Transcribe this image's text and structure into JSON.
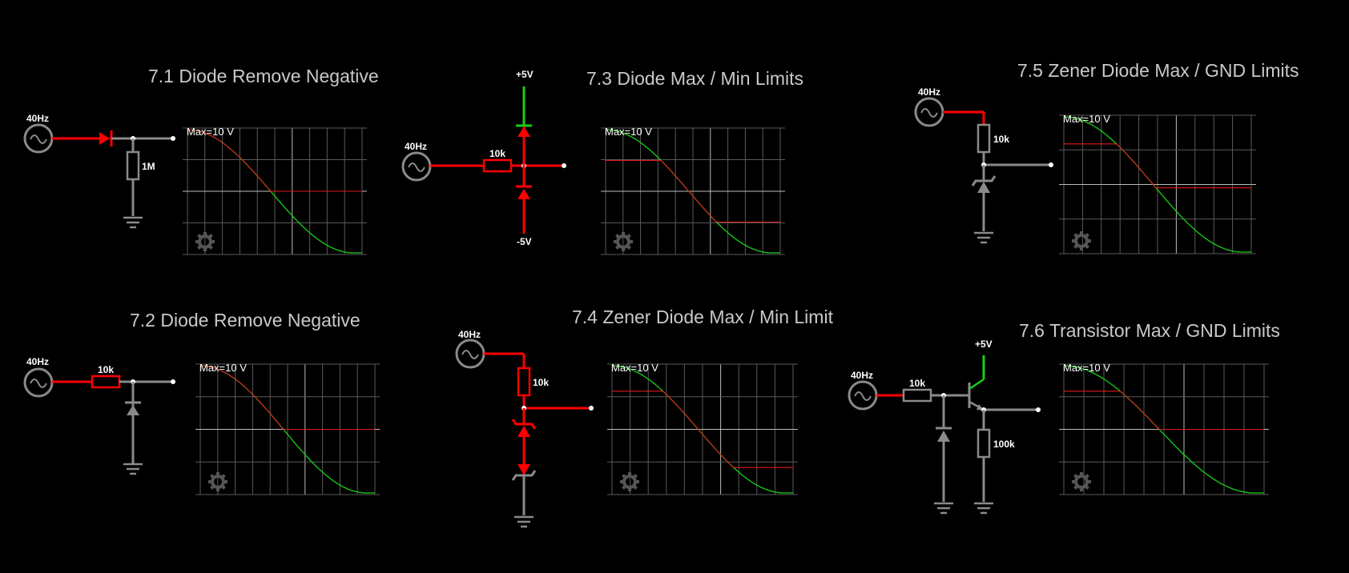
{
  "circuits": [
    {
      "id": "c71",
      "title": "7.1 Diode Remove Negative",
      "source": "40Hz",
      "component": "1M",
      "scope_label": "Max=10 V",
      "clip_high": 1.0,
      "clip_low": 0.0
    },
    {
      "id": "c72",
      "title": "7.2 Diode Remove Negative",
      "source": "40Hz",
      "component": "10k",
      "scope_label": "Max=10 V",
      "clip_high": 1.0,
      "clip_low": 0.0
    },
    {
      "id": "c73",
      "title": "7.3 Diode Max / Min Limits",
      "source": "40Hz",
      "component": "10k",
      "supply_top": "+5V",
      "supply_bottom": "-5V",
      "scope_label": "Max=10 V",
      "clip_high": 0.5,
      "clip_low": -0.5
    },
    {
      "id": "c74",
      "title": "7.4 Zener Diode Max / Min Limit",
      "source": "40Hz",
      "component": "10k",
      "scope_label": "Max=10 V",
      "clip_high": 0.6,
      "clip_low": -0.6
    },
    {
      "id": "c75",
      "title": "7.5 Zener Diode Max / GND Limits",
      "source": "40Hz",
      "component": "10k",
      "scope_label": "Max=10 V",
      "clip_high": 0.6,
      "clip_low": -0.05
    },
    {
      "id": "c76",
      "title": "7.6 Transistor Max / GND Limits",
      "source": "40Hz",
      "component": "10k",
      "component2": "100k",
      "supply_top": "+5V",
      "scope_label": "Max=10 V",
      "clip_high": 0.6,
      "clip_low": 0.0
    }
  ],
  "colors": {
    "wire_active": "#ff0000",
    "wire_idle": "#8a8a8a",
    "wire_green": "#17d017",
    "trace_in": "#19d019",
    "trace_out": "#e01818"
  },
  "icons": {
    "source": "ac-source-icon",
    "ground": "ground-icon",
    "settings": "gear-icon"
  }
}
